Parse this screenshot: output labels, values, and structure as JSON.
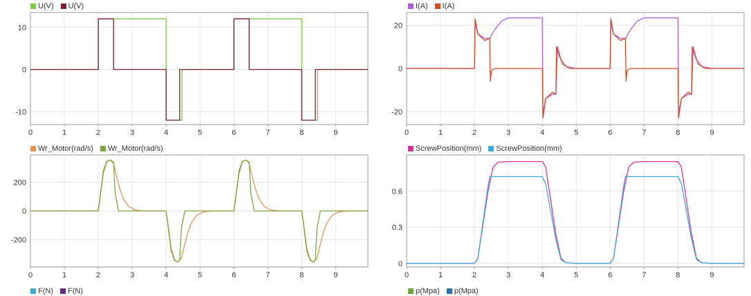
{
  "chart_data": [
    {
      "type": "line",
      "xlim": [
        0,
        9.95
      ],
      "ylim": [
        -13,
        13.5
      ],
      "xticks": [
        0,
        1,
        2,
        3,
        4,
        5,
        6,
        7,
        8,
        9
      ],
      "yticks": [
        10,
        0,
        -10
      ],
      "grid": true,
      "legend": "top-left",
      "series": [
        {
          "name": "U(V)",
          "color": "#7ecb45",
          "x": [
            0,
            2,
            2,
            4,
            4,
            4.47,
            4.47,
            6,
            6,
            8,
            8,
            8.47,
            8.47,
            9.95
          ],
          "y": [
            0,
            0,
            12,
            12,
            -12,
            -12,
            0,
            0,
            12,
            12,
            -12,
            -12,
            0,
            0
          ]
        },
        {
          "name": "U(V)",
          "color": "#7b1f2e",
          "x": [
            0,
            2,
            2,
            2.45,
            2.45,
            4,
            4,
            4.4,
            4.4,
            6,
            6,
            6.45,
            6.45,
            8,
            8,
            8.4,
            8.4,
            9.95
          ],
          "y": [
            0,
            0,
            12,
            12,
            0,
            0,
            -12,
            -12,
            0,
            0,
            12,
            12,
            0,
            0,
            -12,
            -12,
            0,
            0
          ]
        }
      ]
    },
    {
      "type": "line",
      "xlim": [
        0,
        9.95
      ],
      "ylim": [
        -26,
        26
      ],
      "xticks": [
        0,
        1,
        2,
        3,
        4,
        5,
        6,
        7,
        8,
        9
      ],
      "yticks": [
        20,
        0,
        -20
      ],
      "grid": true,
      "legend": "top-left",
      "series": [
        {
          "name": "I(A)",
          "color": "#b15de0",
          "x": [
            0,
            2,
            2.02,
            2.1,
            2.3,
            2.45,
            2.6,
            2.8,
            3.0,
            3.5,
            4,
            4.02,
            4.1,
            4.3,
            4.4,
            4.45,
            4.55,
            4.7,
            5,
            6,
            6.02,
            6.1,
            6.3,
            6.45,
            6.6,
            6.8,
            7.0,
            7.5,
            8,
            8.02,
            8.1,
            8.3,
            8.4,
            8.45,
            8.55,
            8.7,
            9,
            9.95
          ],
          "y": [
            0,
            0,
            21,
            16,
            14,
            14,
            18,
            22,
            23.5,
            23.5,
            23.5,
            -21,
            -14,
            -12,
            -12,
            10,
            4,
            1,
            0,
            0,
            21,
            16,
            14,
            14,
            18,
            22,
            23.5,
            23.5,
            23.5,
            -21,
            -14,
            -12,
            -12,
            10,
            4,
            1,
            0,
            0
          ]
        },
        {
          "name": "I(A)",
          "color": "#d64a24",
          "x": [
            0,
            2,
            2.02,
            2.1,
            2.3,
            2.45,
            2.47,
            2.5,
            2.6,
            4,
            4.02,
            4.1,
            4.3,
            4.4,
            4.42,
            4.5,
            4.6,
            4.8,
            6,
            6.02,
            6.1,
            6.3,
            6.45,
            6.47,
            6.5,
            6.6,
            8,
            8.02,
            8.1,
            8.3,
            8.4,
            8.42,
            8.5,
            8.6,
            8.8,
            9.95
          ],
          "y": [
            0,
            0,
            23,
            16,
            13,
            14,
            -6,
            -1,
            0,
            0,
            -23,
            -14,
            -11,
            -12,
            10,
            6,
            2,
            0,
            0,
            23,
            16,
            13,
            14,
            -6,
            -1,
            0,
            0,
            -23,
            -14,
            -11,
            -12,
            10,
            6,
            2,
            0,
            0
          ]
        }
      ]
    },
    {
      "type": "line",
      "xlim": [
        0,
        9.95
      ],
      "ylim": [
        -390,
        390
      ],
      "xticks": [
        0,
        1,
        2,
        3,
        4,
        5,
        6,
        7,
        8,
        9
      ],
      "yticks": [
        200,
        0,
        -200
      ],
      "grid": true,
      "legend": "top-left",
      "series": [
        {
          "name": "Wr_Motor(rad/s)",
          "color": "#e8935a",
          "x": [
            0,
            2,
            2.05,
            2.15,
            2.25,
            2.35,
            2.45,
            2.55,
            2.65,
            2.75,
            2.9,
            3.1,
            3.4,
            4,
            4.05,
            4.15,
            4.25,
            4.35,
            4.45,
            4.55,
            4.65,
            4.75,
            4.9,
            5.1,
            5.4,
            6,
            6.05,
            6.15,
            6.25,
            6.35,
            6.45,
            6.55,
            6.65,
            6.75,
            6.9,
            7.1,
            7.4,
            8,
            8.05,
            8.15,
            8.25,
            8.35,
            8.45,
            8.55,
            8.65,
            8.75,
            8.9,
            9.1,
            9.4,
            9.95
          ],
          "y": [
            0,
            0,
            80,
            260,
            340,
            355,
            330,
            230,
            140,
            80,
            30,
            6,
            0,
            0,
            -80,
            -260,
            -340,
            -355,
            -330,
            -230,
            -140,
            -80,
            -30,
            -6,
            0,
            0,
            80,
            260,
            340,
            355,
            330,
            230,
            140,
            80,
            30,
            6,
            0,
            0,
            -80,
            -260,
            -340,
            -355,
            -330,
            -230,
            -140,
            -80,
            -30,
            -6,
            0,
            0
          ]
        },
        {
          "name": "Wr_Motor(rad/s)",
          "color": "#7aa83c",
          "x": [
            0,
            2,
            2.05,
            2.15,
            2.25,
            2.35,
            2.45,
            2.5,
            2.6,
            4,
            4.05,
            4.15,
            4.25,
            4.35,
            4.4,
            4.45,
            4.55,
            6,
            6.05,
            6.15,
            6.25,
            6.35,
            6.45,
            6.5,
            6.6,
            8,
            8.05,
            8.15,
            8.25,
            8.35,
            8.4,
            8.45,
            8.55,
            9.95
          ],
          "y": [
            0,
            0,
            90,
            280,
            345,
            355,
            340,
            120,
            0,
            0,
            -90,
            -280,
            -345,
            -355,
            -340,
            -120,
            0,
            0,
            90,
            280,
            345,
            355,
            340,
            120,
            0,
            0,
            -90,
            -280,
            -345,
            -355,
            -340,
            -120,
            0,
            0
          ]
        }
      ]
    },
    {
      "type": "line",
      "xlim": [
        0,
        9.95
      ],
      "ylim": [
        -0.03,
        0.9
      ],
      "xticks": [
        0,
        1,
        2,
        3,
        4,
        5,
        6,
        7,
        8,
        9
      ],
      "yticks": [
        0.6,
        0.3,
        0
      ],
      "grid": true,
      "legend": "top-left",
      "series": [
        {
          "name": "ScrewPosition(mm)",
          "color": "#d62fa8",
          "x": [
            0,
            2,
            2.1,
            2.4,
            2.55,
            2.7,
            3,
            4,
            4.1,
            4.4,
            4.55,
            4.7,
            5,
            6,
            6.1,
            6.4,
            6.55,
            6.7,
            7,
            8,
            8.1,
            8.4,
            8.55,
            8.7,
            9,
            9.95
          ],
          "y": [
            0,
            0,
            0.04,
            0.6,
            0.8,
            0.84,
            0.845,
            0.845,
            0.8,
            0.24,
            0.04,
            0.005,
            0,
            0,
            0.04,
            0.6,
            0.8,
            0.84,
            0.845,
            0.845,
            0.8,
            0.24,
            0.04,
            0.005,
            0,
            0
          ]
        },
        {
          "name": "ScrewPosition(mm)",
          "color": "#3fa8d8",
          "x": [
            0,
            2,
            2.1,
            2.4,
            2.45,
            4,
            4.1,
            4.4,
            4.55,
            4.7,
            5,
            6,
            6.1,
            6.4,
            6.45,
            8,
            8.1,
            8.4,
            8.55,
            8.7,
            9,
            9.95
          ],
          "y": [
            0,
            0,
            0.04,
            0.64,
            0.72,
            0.72,
            0.66,
            0.2,
            0.03,
            0.005,
            0,
            0,
            0.04,
            0.64,
            0.72,
            0.72,
            0.66,
            0.2,
            0.03,
            0.005,
            0,
            0
          ]
        }
      ]
    }
  ],
  "lower_legends": [
    {
      "series": [
        {
          "name": "F(N)",
          "color": "#3fa8d8"
        },
        {
          "name": "F(N)",
          "color": "#6a2d8c"
        }
      ]
    },
    {
      "series": [
        {
          "name": "p(Mpa)",
          "color": "#6aaa3a"
        },
        {
          "name": "p(Mpa)",
          "color": "#2c6ea8"
        }
      ]
    }
  ]
}
